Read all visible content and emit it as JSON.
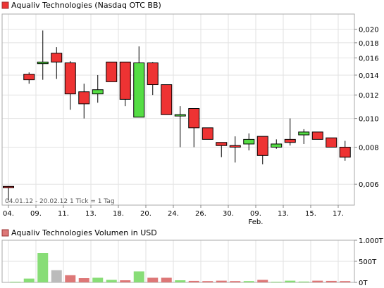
{
  "colors": {
    "up": "#55dd44",
    "down": "#ee3333",
    "vol_up": "#88dd77",
    "vol_down": "#dd7777",
    "vol_neutral": "#bbbbbb",
    "grid": "#e2e2e2",
    "border": "#aaaaaa"
  },
  "chart_data": [
    {
      "type": "candlestick",
      "title": "Aqualiv Technologies (Nasdaq OTC BB)",
      "date_range_note": "04.01.12 - 20.02.12   1 Tick = 1 Tag",
      "y_scale": "log",
      "ylim": [
        0.0051,
        0.0225
      ],
      "grid": true,
      "y_ticks": [
        {
          "value": 0.006,
          "label": "0,006"
        },
        {
          "value": 0.008,
          "label": "0,008"
        },
        {
          "value": 0.01,
          "label": "0,010"
        },
        {
          "value": 0.012,
          "label": "0,012"
        },
        {
          "value": 0.014,
          "label": "0,014"
        },
        {
          "value": 0.016,
          "label": "0,016"
        },
        {
          "value": 0.018,
          "label": "0,018"
        },
        {
          "value": 0.02,
          "label": "0,020"
        }
      ],
      "x_ticks": [
        {
          "index": 0,
          "label": "04."
        },
        {
          "index": 4,
          "label": "09."
        },
        {
          "index": 8,
          "label": "11."
        },
        {
          "index": 12,
          "label": "13."
        },
        {
          "index": 16,
          "label": "18."
        },
        {
          "index": 20,
          "label": "20."
        },
        {
          "index": 24,
          "label": "24."
        },
        {
          "index": 28,
          "label": "26."
        },
        {
          "index": 32,
          "label": "30."
        },
        {
          "index": 36,
          "label": "09.",
          "sub": "Feb."
        },
        {
          "index": 40,
          "label": "13."
        },
        {
          "index": 44,
          "label": "15."
        },
        {
          "index": 48,
          "label": "17."
        }
      ],
      "candles": [
        {
          "i": 0,
          "o": 0.0059,
          "h": 0.0059,
          "l": 0.0053,
          "c": 0.00585
        },
        {
          "i": 3,
          "o": 0.0141,
          "h": 0.0143,
          "l": 0.0131,
          "c": 0.0135
        },
        {
          "i": 5,
          "o": 0.0153,
          "h": 0.0198,
          "l": 0.0135,
          "c": 0.0155
        },
        {
          "i": 7,
          "o": 0.0166,
          "h": 0.0174,
          "l": 0.0136,
          "c": 0.0155
        },
        {
          "i": 9,
          "o": 0.0154,
          "h": 0.0156,
          "l": 0.0107,
          "c": 0.0121
        },
        {
          "i": 11,
          "o": 0.0123,
          "h": 0.0131,
          "l": 0.01,
          "c": 0.0112
        },
        {
          "i": 13,
          "o": 0.0121,
          "h": 0.014,
          "l": 0.0113,
          "c": 0.0125
        },
        {
          "i": 15,
          "o": 0.0155,
          "h": 0.0155,
          "l": 0.0133,
          "c": 0.0133
        },
        {
          "i": 17,
          "o": 0.0155,
          "h": 0.0155,
          "l": 0.011,
          "c": 0.0116
        },
        {
          "i": 19,
          "o": 0.0101,
          "h": 0.0175,
          "l": 0.0101,
          "c": 0.0154
        },
        {
          "i": 21,
          "o": 0.0154,
          "h": 0.0155,
          "l": 0.012,
          "c": 0.013
        },
        {
          "i": 23,
          "o": 0.013,
          "h": 0.013,
          "l": 0.0103,
          "c": 0.0103
        },
        {
          "i": 25,
          "o": 0.0103,
          "h": 0.011,
          "l": 0.008,
          "c": 0.0103
        },
        {
          "i": 27,
          "o": 0.0108,
          "h": 0.0108,
          "l": 0.008,
          "c": 0.0093
        },
        {
          "i": 29,
          "o": 0.0093,
          "h": 0.0093,
          "l": 0.0085,
          "c": 0.0085
        },
        {
          "i": 31,
          "o": 0.0083,
          "h": 0.0083,
          "l": 0.0074,
          "c": 0.0081
        },
        {
          "i": 33,
          "o": 0.0081,
          "h": 0.0087,
          "l": 0.0071,
          "c": 0.008
        },
        {
          "i": 35,
          "o": 0.0082,
          "h": 0.0089,
          "l": 0.0078,
          "c": 0.0085
        },
        {
          "i": 37,
          "o": 0.0087,
          "h": 0.0087,
          "l": 0.007,
          "c": 0.0075
        },
        {
          "i": 39,
          "o": 0.008,
          "h": 0.0085,
          "l": 0.0079,
          "c": 0.0082
        },
        {
          "i": 41,
          "o": 0.0085,
          "h": 0.01,
          "l": 0.0081,
          "c": 0.0083
        },
        {
          "i": 43,
          "o": 0.0088,
          "h": 0.0092,
          "l": 0.0082,
          "c": 0.009
        },
        {
          "i": 45,
          "o": 0.009,
          "h": 0.009,
          "l": 0.0085,
          "c": 0.0085
        },
        {
          "i": 47,
          "o": 0.0086,
          "h": 0.0086,
          "l": 0.008,
          "c": 0.008
        },
        {
          "i": 49,
          "o": 0.008,
          "h": 0.0084,
          "l": 0.0072,
          "c": 0.0074
        }
      ]
    },
    {
      "type": "bar",
      "title": "Aqualiv Technologies Volumen in USD",
      "ylim": [
        0,
        1000
      ],
      "y_ticks": [
        {
          "value": 0,
          "label": "0T"
        },
        {
          "value": 500,
          "label": "500T"
        },
        {
          "value": 1000,
          "label": "1.000T"
        }
      ],
      "bars": [
        {
          "i": 1,
          "v": 15,
          "dir": "up"
        },
        {
          "i": 3,
          "v": 90,
          "dir": "up"
        },
        {
          "i": 5,
          "v": 700,
          "dir": "up"
        },
        {
          "i": 7,
          "v": 290,
          "dir": "neutral"
        },
        {
          "i": 9,
          "v": 170,
          "dir": "down"
        },
        {
          "i": 11,
          "v": 100,
          "dir": "down"
        },
        {
          "i": 13,
          "v": 110,
          "dir": "up"
        },
        {
          "i": 15,
          "v": 60,
          "dir": "up"
        },
        {
          "i": 17,
          "v": 50,
          "dir": "down"
        },
        {
          "i": 19,
          "v": 260,
          "dir": "up"
        },
        {
          "i": 21,
          "v": 110,
          "dir": "down"
        },
        {
          "i": 23,
          "v": 110,
          "dir": "down"
        },
        {
          "i": 25,
          "v": 50,
          "dir": "up"
        },
        {
          "i": 27,
          "v": 35,
          "dir": "down"
        },
        {
          "i": 29,
          "v": 30,
          "dir": "down"
        },
        {
          "i": 31,
          "v": 40,
          "dir": "down"
        },
        {
          "i": 33,
          "v": 30,
          "dir": "down"
        },
        {
          "i": 35,
          "v": 30,
          "dir": "up"
        },
        {
          "i": 37,
          "v": 60,
          "dir": "down"
        },
        {
          "i": 39,
          "v": 15,
          "dir": "up"
        },
        {
          "i": 41,
          "v": 40,
          "dir": "up"
        },
        {
          "i": 43,
          "v": 20,
          "dir": "up"
        },
        {
          "i": 45,
          "v": 40,
          "dir": "down"
        },
        {
          "i": 47,
          "v": 35,
          "dir": "down"
        },
        {
          "i": 49,
          "v": 30,
          "dir": "down"
        }
      ]
    }
  ]
}
